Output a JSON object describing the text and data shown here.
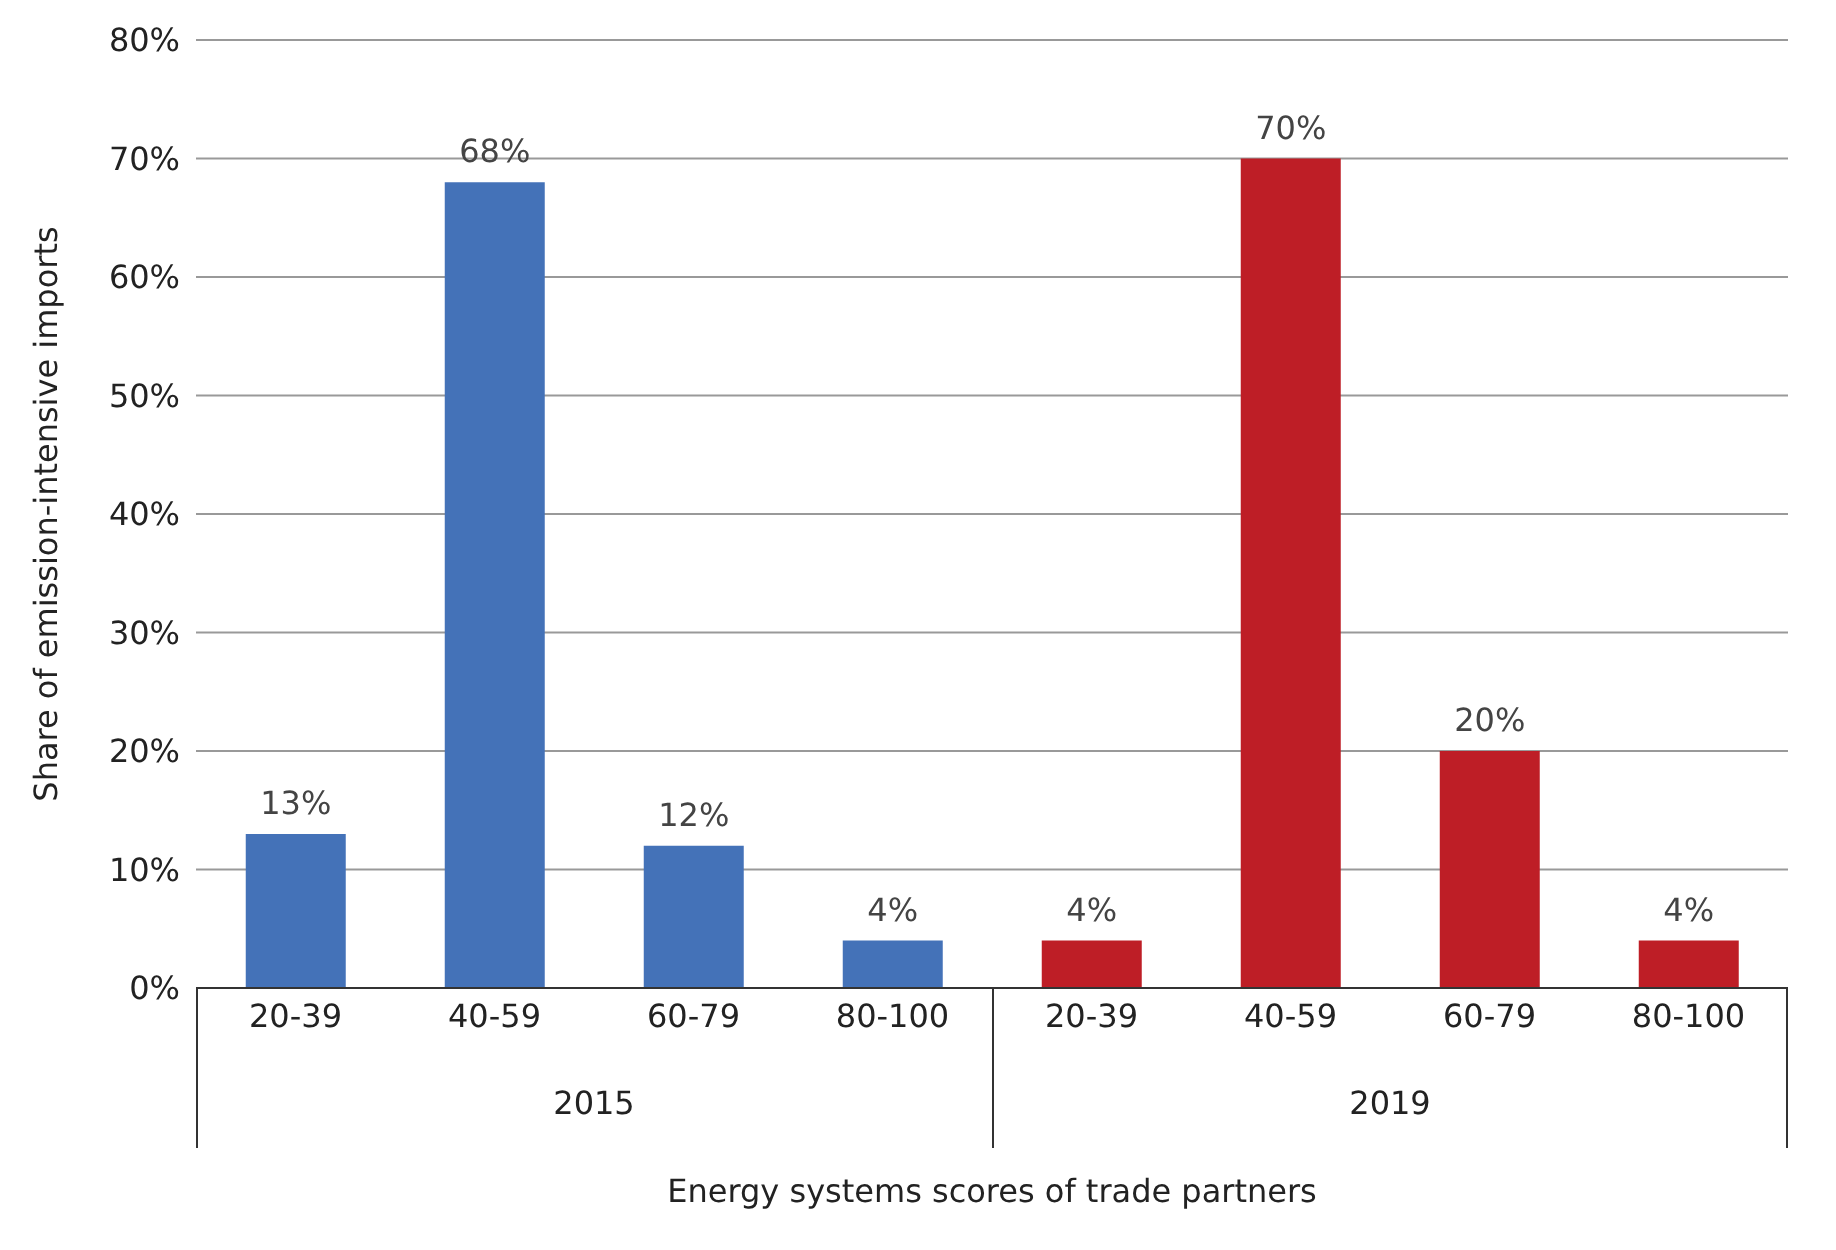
{
  "chart_data": {
    "type": "bar",
    "ylabel": "Share of emission-intensive imports",
    "xlabel": "Energy systems scores of trade partners",
    "categories": [
      "20-39",
      "40-59",
      "60-79",
      "80-100",
      "20-39",
      "40-59",
      "60-79",
      "80-100"
    ],
    "values": [
      13,
      68,
      12,
      4,
      4,
      70,
      20,
      4
    ],
    "colors": [
      "#4472b8",
      "#4472b8",
      "#4472b8",
      "#4472b8",
      "#be1e26",
      "#be1e26",
      "#be1e26",
      "#be1e26"
    ],
    "value_labels": [
      "13%",
      "68%",
      "12%",
      "4%",
      "4%",
      "70%",
      "20%",
      "4%"
    ],
    "annotations": [
      "2015",
      "2019"
    ],
    "ylim": [
      0,
      80
    ],
    "yticks": [
      {
        "value": 0,
        "label": "0%"
      },
      {
        "value": 10,
        "label": "10%"
      },
      {
        "value": 20,
        "label": "20%"
      },
      {
        "value": 30,
        "label": "30%"
      },
      {
        "value": 40,
        "label": "40%"
      },
      {
        "value": 50,
        "label": "50%"
      },
      {
        "value": 60,
        "label": "60%"
      },
      {
        "value": 70,
        "label": "70%"
      },
      {
        "value": 80,
        "label": "80%"
      }
    ],
    "grid": "y",
    "legend": false
  }
}
